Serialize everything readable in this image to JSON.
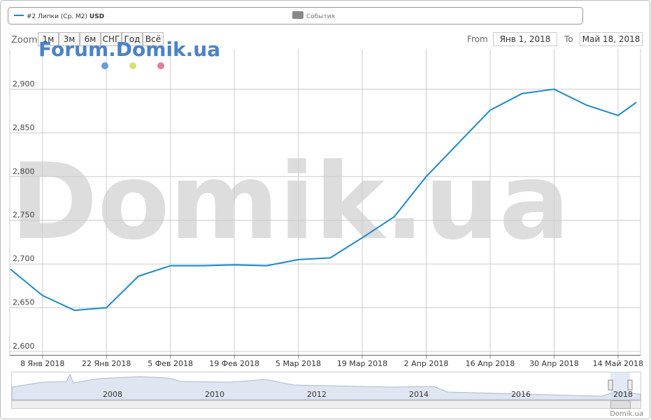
{
  "chart_data": {
    "type": "line",
    "x": [
      "2018-01-01",
      "2018-01-08",
      "2018-01-15",
      "2018-01-22",
      "2018-01-29",
      "2018-02-05",
      "2018-02-12",
      "2018-02-19",
      "2018-02-26",
      "2018-03-05",
      "2018-03-12",
      "2018-03-19",
      "2018-03-26",
      "2018-04-02",
      "2018-04-09",
      "2018-04-16",
      "2018-04-23",
      "2018-04-30",
      "2018-05-07",
      "2018-05-14",
      "2018-05-18"
    ],
    "series": [
      {
        "name": "#2 Липки (Ср. М2)",
        "unit": "USD",
        "color": "#1a8ac6",
        "values": [
          2694,
          2664,
          2647,
          2650,
          2686,
          2698,
          2698,
          2699,
          2698,
          2705,
          2707,
          2730,
          2754,
          2800,
          2838,
          2876,
          2895,
          2900,
          2882,
          2870,
          2885
        ]
      }
    ],
    "xlim": [
      "2018-01-01",
      "2018-05-18"
    ],
    "xticks": [
      {
        "value": "2018-01-08",
        "label": "8 Янв 2018"
      },
      {
        "value": "2018-01-22",
        "label": "22 Янв 2018"
      },
      {
        "value": "2018-02-05",
        "label": "5 Фев 2018"
      },
      {
        "value": "2018-02-19",
        "label": "19 Фев 2018"
      },
      {
        "value": "2018-03-05",
        "label": "5 Мар 2018"
      },
      {
        "value": "2018-03-19",
        "label": "19 Мар 2018"
      },
      {
        "value": "2018-04-02",
        "label": "2 Апр 2018"
      },
      {
        "value": "2018-04-16",
        "label": "16 Апр 2018"
      },
      {
        "value": "2018-04-30",
        "label": "30 Апр 2018"
      },
      {
        "value": "2018-05-14",
        "label": "14 Май 2018"
      }
    ],
    "ylim": [
      2596,
      2946
    ],
    "yticks": [
      {
        "value": 2600,
        "label": "2,600"
      },
      {
        "value": 2650,
        "label": "2,650"
      },
      {
        "value": 2700,
        "label": "2,700"
      },
      {
        "value": 2750,
        "label": "2,750"
      },
      {
        "value": 2800,
        "label": "2,800"
      },
      {
        "value": 2850,
        "label": "2,850"
      },
      {
        "value": 2900,
        "label": "2,900"
      }
    ],
    "grid": true
  },
  "ui": {
    "events": "События",
    "zoom": "Zoom",
    "zoom_buttons": [
      "1м",
      "3м",
      "6м",
      "СНГ",
      "Год",
      "Всё"
    ],
    "from": "From",
    "from_date": "Янв 1, 2018",
    "to": "To",
    "to_date": "Май 18, 2018",
    "watermark": "Forum.Domik.ua",
    "watermark_big": "Domik.ua",
    "navigator_years": [
      "2008",
      "2010",
      "2012",
      "2014",
      "2016",
      "2018"
    ],
    "credit": "Domik.ua"
  }
}
